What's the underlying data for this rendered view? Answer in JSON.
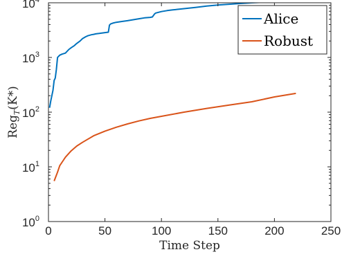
{
  "chart_data": {
    "type": "line",
    "xlabel": "Time Step",
    "ylabel": {
      "base": "Reg",
      "subscript": "T",
      "arg": "(K*)"
    },
    "xlim": [
      0,
      250
    ],
    "ylim": [
      1,
      10000
    ],
    "yscale": "log",
    "x_ticks": [
      "0",
      "50",
      "100",
      "150",
      "200",
      "250"
    ],
    "y_ticks": [
      {
        "base": "10",
        "exp": "0"
      },
      {
        "base": "10",
        "exp": "1"
      },
      {
        "base": "10",
        "exp": "2"
      },
      {
        "base": "10",
        "exp": "3"
      },
      {
        "base": "10",
        "exp": "4"
      }
    ],
    "grid": false,
    "legend": "top-right",
    "series": [
      {
        "name": "Alice",
        "color": "#0072BD",
        "x": [
          1,
          2,
          3,
          4,
          5,
          6,
          7,
          8,
          9,
          10,
          12,
          15,
          18,
          20,
          23,
          25,
          28,
          30,
          33,
          35,
          38,
          40,
          42,
          45,
          50,
          53,
          54,
          55,
          57,
          60,
          65,
          70,
          75,
          80,
          85,
          90,
          92,
          94,
          95,
          100,
          105,
          110,
          115,
          120,
          130,
          140,
          150,
          160,
          170,
          180,
          190,
          200,
          210,
          219
        ],
        "y": [
          120,
          160,
          200,
          250,
          380,
          420,
          600,
          1000,
          1050,
          1100,
          1150,
          1200,
          1400,
          1500,
          1650,
          1800,
          2000,
          2200,
          2400,
          2500,
          2600,
          2650,
          2700,
          2750,
          2850,
          2900,
          3900,
          4100,
          4250,
          4400,
          4550,
          4700,
          4900,
          5100,
          5300,
          5400,
          5500,
          6300,
          6500,
          6900,
          7200,
          7400,
          7600,
          7800,
          8200,
          8700,
          9100,
          9400,
          9700,
          10000,
          10200,
          10400,
          10700,
          10800
        ]
      },
      {
        "name": "Robust",
        "color": "#D95319",
        "x": [
          5,
          8,
          10,
          13,
          15,
          20,
          25,
          30,
          40,
          50,
          60,
          70,
          80,
          90,
          100,
          120,
          140,
          160,
          180,
          200,
          219
        ],
        "y": [
          5.5,
          8,
          10.5,
          13,
          15,
          19.5,
          24,
          28,
          37,
          45,
          53,
          61,
          69,
          77,
          84,
          100,
          117,
          135,
          155,
          190,
          220
        ]
      }
    ]
  }
}
